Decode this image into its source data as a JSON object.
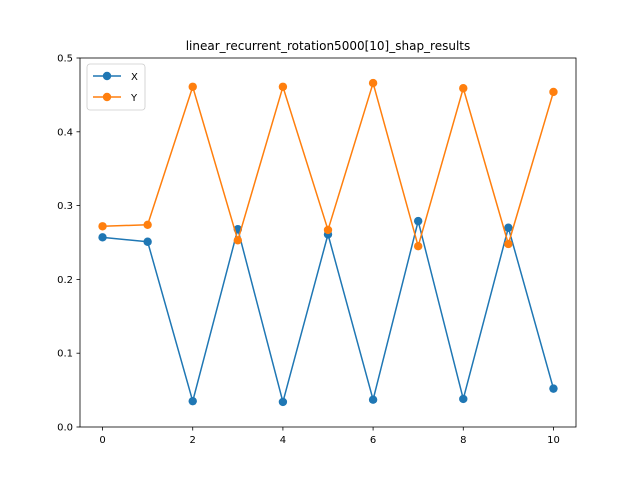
{
  "chart_data": {
    "type": "line",
    "title": "linear_recurrent_rotation5000[10]_shap_results",
    "xlabel": "",
    "ylabel": "",
    "x": [
      0,
      1,
      2,
      3,
      4,
      5,
      6,
      7,
      8,
      9,
      10
    ],
    "xlim": [
      -0.5,
      10.5
    ],
    "ylim": [
      0.0,
      0.5
    ],
    "xticks": [
      0,
      2,
      4,
      6,
      8,
      10
    ],
    "yticks": [
      0.0,
      0.1,
      0.2,
      0.3,
      0.4,
      0.5
    ],
    "xtick_labels": [
      "0",
      "2",
      "4",
      "6",
      "8",
      "10"
    ],
    "ytick_labels": [
      "0.0",
      "0.1",
      "0.2",
      "0.3",
      "0.4",
      "0.5"
    ],
    "grid": false,
    "legend_position": "top-left",
    "series": [
      {
        "name": "X",
        "color": "#1f77b4",
        "marker": "circle",
        "values": [
          0.257,
          0.251,
          0.035,
          0.268,
          0.034,
          0.261,
          0.037,
          0.279,
          0.038,
          0.27,
          0.052
        ]
      },
      {
        "name": "Y",
        "color": "#ff7f0e",
        "marker": "circle",
        "values": [
          0.272,
          0.274,
          0.461,
          0.253,
          0.461,
          0.267,
          0.466,
          0.245,
          0.459,
          0.248,
          0.454
        ]
      }
    ]
  }
}
